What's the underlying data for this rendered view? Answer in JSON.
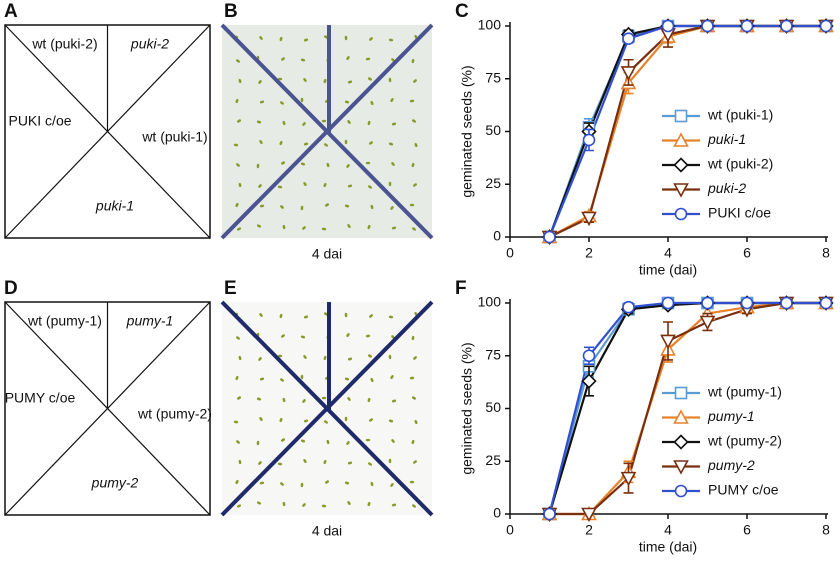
{
  "figure": {
    "letters": [
      "A",
      "B",
      "C",
      "D",
      "E",
      "F"
    ]
  },
  "diagrams": [
    {
      "labels": [
        "wt (puki-2)",
        "puki-2",
        "PUKI c/oe",
        "wt (puki-1)",
        "puki-1"
      ],
      "italic": [
        false,
        true,
        false,
        false,
        true
      ]
    },
    {
      "labels": [
        "wt (pumy-1)",
        "pumy-1",
        "PUMY c/oe",
        "wt (pumy-2)",
        "pumy-2"
      ],
      "italic": [
        false,
        true,
        false,
        false,
        true
      ]
    }
  ],
  "photos": [
    {
      "caption": "4 dai",
      "color": "#e6ebe5"
    },
    {
      "caption": "4 dai",
      "color": "#f7f7f5"
    }
  ],
  "chart_data": [
    {
      "type": "line",
      "xlabel": "time (dai)",
      "ylabel": "geminated seeds (%)",
      "x": [
        1,
        2,
        3,
        4,
        5,
        6,
        7,
        8
      ],
      "xlim": [
        0,
        8
      ],
      "xticks": [
        0,
        2,
        4,
        6,
        8
      ],
      "ylim": [
        0,
        100
      ],
      "yticks": [
        0,
        25,
        50,
        75,
        100
      ],
      "series": [
        {
          "name": "wt (puki-1)",
          "color": "#5b9bd5",
          "marker": "square",
          "italic": false,
          "values": [
            0,
            52,
            95,
            100,
            100,
            100,
            100,
            100
          ],
          "errors": [
            0,
            4,
            2,
            0,
            0,
            0,
            0,
            0
          ]
        },
        {
          "name": "puki-1",
          "color": "#e8822a",
          "marker": "triangle-up",
          "italic": true,
          "values": [
            0,
            10,
            73,
            95,
            100,
            100,
            100,
            100
          ],
          "errors": [
            0,
            2,
            5,
            3,
            0,
            0,
            0,
            0
          ]
        },
        {
          "name": "wt (puki-2)",
          "color": "#111111",
          "marker": "diamond",
          "italic": false,
          "values": [
            0,
            50,
            96,
            100,
            100,
            100,
            100,
            100
          ],
          "errors": [
            0,
            4,
            2,
            0,
            0,
            0,
            0,
            0
          ]
        },
        {
          "name": "puki-2",
          "color": "#7a2e0e",
          "marker": "triangle-down",
          "italic": true,
          "values": [
            0,
            9,
            78,
            96,
            100,
            100,
            100,
            100
          ],
          "errors": [
            0,
            2,
            6,
            6,
            0,
            0,
            0,
            0
          ]
        },
        {
          "name": "PUKI c/oe",
          "color": "#3050d0",
          "marker": "circle",
          "italic": false,
          "values": [
            0,
            46,
            94,
            100,
            100,
            100,
            100,
            100
          ],
          "errors": [
            0,
            5,
            2,
            0,
            0,
            0,
            0,
            0
          ]
        }
      ]
    },
    {
      "type": "line",
      "xlabel": "time (dai)",
      "ylabel": "geminated seeds (%)",
      "x": [
        1,
        2,
        3,
        4,
        5,
        6,
        7,
        8
      ],
      "xlim": [
        0,
        8
      ],
      "xticks": [
        0,
        2,
        4,
        6,
        8
      ],
      "ylim": [
        0,
        100
      ],
      "yticks": [
        0,
        25,
        50,
        75,
        100
      ],
      "series": [
        {
          "name": "wt (pumy-1)",
          "color": "#5b9bd5",
          "marker": "square",
          "italic": false,
          "values": [
            0,
            70,
            97,
            100,
            100,
            100,
            100,
            100
          ],
          "errors": [
            0,
            5,
            2,
            0,
            0,
            0,
            0,
            0
          ]
        },
        {
          "name": "pumy-1",
          "color": "#e8822a",
          "marker": "triangle-up",
          "italic": true,
          "values": [
            0,
            0,
            20,
            78,
            95,
            98,
            100,
            100
          ],
          "errors": [
            0,
            0,
            5,
            6,
            3,
            2,
            0,
            0
          ]
        },
        {
          "name": "wt (pumy-2)",
          "color": "#111111",
          "marker": "diamond",
          "italic": false,
          "values": [
            0,
            63,
            97,
            99,
            100,
            100,
            100,
            100
          ],
          "errors": [
            0,
            7,
            2,
            1,
            0,
            0,
            0,
            0
          ]
        },
        {
          "name": "pumy-2",
          "color": "#7a2e0e",
          "marker": "triangle-down",
          "italic": true,
          "values": [
            0,
            0,
            17,
            82,
            91,
            97,
            100,
            100
          ],
          "errors": [
            0,
            0,
            7,
            9,
            4,
            2,
            0,
            0
          ]
        },
        {
          "name": "PUMY c/oe",
          "color": "#3050d0",
          "marker": "circle",
          "italic": false,
          "values": [
            0,
            75,
            98,
            100,
            100,
            100,
            100,
            100
          ],
          "errors": [
            0,
            4,
            2,
            0,
            0,
            0,
            0,
            0
          ]
        }
      ]
    }
  ]
}
